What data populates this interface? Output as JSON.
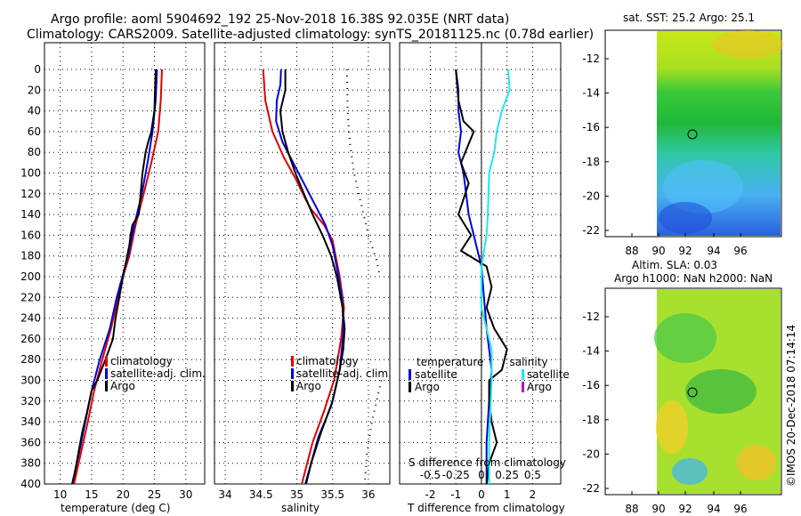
{
  "header": {
    "line1": "Argo profile: aoml 5904692_192 25-Nov-2018 16.38S 92.035E (NRT data)",
    "line2": "Climatology: CARS2009. Satellite-adjusted climatology: synTS_20181125.nc (0.78d earlier)"
  },
  "colors": {
    "climatology": "#e00000",
    "satellite": "#0000e0",
    "argo": "#000000",
    "sat_salinity": "#20e8e8",
    "argo_salinity": "#c000c0"
  },
  "chart_data": [
    {
      "type": "line",
      "id": "temperature",
      "xlabel": "temperature (deg C)",
      "xlim": [
        7.5,
        33
      ],
      "ylim": [
        0,
        400
      ],
      "x_ticks": [
        10,
        15,
        20,
        25,
        30
      ],
      "y_ticks": [
        0,
        20,
        40,
        60,
        80,
        100,
        120,
        140,
        160,
        180,
        200,
        220,
        240,
        260,
        280,
        300,
        320,
        340,
        360,
        380,
        400
      ],
      "legend": [
        "climatology",
        "satellite-adj. clim.",
        "Argo"
      ],
      "series": [
        {
          "name": "climatology",
          "points": [
            [
              26.2,
              0
            ],
            [
              26.0,
              30
            ],
            [
              25.6,
              60
            ],
            [
              24.5,
              90
            ],
            [
              23.3,
              120
            ],
            [
              22.0,
              150
            ],
            [
              21.0,
              180
            ],
            [
              20.0,
              200
            ],
            [
              19.2,
              220
            ],
            [
              18.1,
              250
            ],
            [
              16.7,
              280
            ],
            [
              15.4,
              310
            ],
            [
              14.4,
              340
            ],
            [
              13.3,
              370
            ],
            [
              12.2,
              400
            ]
          ]
        },
        {
          "name": "satellite-adj. clim.",
          "points": [
            [
              25.4,
              0
            ],
            [
              25.2,
              30
            ],
            [
              24.7,
              60
            ],
            [
              23.9,
              90
            ],
            [
              23.0,
              120
            ],
            [
              21.8,
              150
            ],
            [
              20.8,
              180
            ],
            [
              19.9,
              200
            ],
            [
              19.0,
              220
            ],
            [
              17.9,
              250
            ],
            [
              16.3,
              280
            ],
            [
              15.0,
              310
            ],
            [
              14.0,
              340
            ],
            [
              13.0,
              370
            ],
            [
              11.9,
              400
            ]
          ]
        },
        {
          "name": "Argo",
          "points": [
            [
              25.2,
              0
            ],
            [
              25.1,
              20
            ],
            [
              25.0,
              40
            ],
            [
              24.5,
              60
            ],
            [
              24.0,
              70
            ],
            [
              23.6,
              80
            ],
            [
              23.1,
              100
            ],
            [
              22.8,
              120
            ],
            [
              22.5,
              140
            ],
            [
              21.5,
              150
            ],
            [
              21.2,
              160
            ],
            [
              21.0,
              170
            ],
            [
              20.5,
              185
            ],
            [
              20.0,
              200
            ],
            [
              19.4,
              220
            ],
            [
              18.8,
              240
            ],
            [
              18.4,
              260
            ],
            [
              17.2,
              280
            ],
            [
              15.9,
              300
            ],
            [
              15.0,
              310
            ],
            [
              14.3,
              330
            ],
            [
              13.5,
              350
            ],
            [
              12.9,
              370
            ],
            [
              12.3,
              390
            ],
            [
              11.9,
              400
            ]
          ]
        }
      ]
    },
    {
      "type": "line",
      "id": "salinity",
      "xlabel": "salinity",
      "xlim": [
        33.85,
        36.3
      ],
      "ylim": [
        0,
        400
      ],
      "x_ticks": [
        34,
        34.5,
        35,
        35.5,
        36
      ],
      "legend": [
        "climatology",
        "satellite-adj. clim.",
        "Argo"
      ],
      "series": [
        {
          "name": "climatology",
          "points": [
            [
              34.53,
              0
            ],
            [
              34.56,
              30
            ],
            [
              34.66,
              60
            ],
            [
              34.82,
              85
            ],
            [
              34.98,
              105
            ],
            [
              35.12,
              125
            ],
            [
              35.2,
              135
            ],
            [
              35.38,
              150
            ],
            [
              35.5,
              165
            ],
            [
              35.6,
              200
            ],
            [
              35.66,
              230
            ],
            [
              35.62,
              260
            ],
            [
              35.52,
              300
            ],
            [
              35.38,
              330
            ],
            [
              35.22,
              360
            ],
            [
              35.07,
              400
            ]
          ]
        },
        {
          "name": "satellite-adj. clim.",
          "points": [
            [
              34.78,
              0
            ],
            [
              34.77,
              15
            ],
            [
              34.72,
              30
            ],
            [
              34.71,
              50
            ],
            [
              34.8,
              70
            ],
            [
              34.95,
              90
            ],
            [
              35.1,
              110
            ],
            [
              35.25,
              130
            ],
            [
              35.4,
              150
            ],
            [
              35.5,
              170
            ],
            [
              35.57,
              195
            ],
            [
              35.64,
              225
            ],
            [
              35.65,
              255
            ],
            [
              35.6,
              290
            ],
            [
              35.48,
              325
            ],
            [
              35.3,
              355
            ],
            [
              35.12,
              400
            ]
          ]
        },
        {
          "name": "Argo",
          "points": [
            [
              34.84,
              0
            ],
            [
              34.84,
              20
            ],
            [
              34.77,
              40
            ],
            [
              34.8,
              60
            ],
            [
              34.88,
              80
            ],
            [
              34.98,
              100
            ],
            [
              35.1,
              120
            ],
            [
              35.22,
              140
            ],
            [
              35.36,
              160
            ],
            [
              35.48,
              180
            ],
            [
              35.56,
              200
            ],
            [
              35.64,
              230
            ],
            [
              35.67,
              250
            ],
            [
              35.65,
              270
            ],
            [
              35.6,
              290
            ],
            [
              35.5,
              320
            ],
            [
              35.34,
              350
            ],
            [
              35.2,
              380
            ],
            [
              35.13,
              400
            ]
          ]
        },
        {
          "name": "dotted",
          "points": [
            [
              35.7,
              0
            ],
            [
              35.71,
              40
            ],
            [
              35.74,
              70
            ],
            [
              35.8,
              100
            ],
            [
              35.9,
              130
            ],
            [
              36.0,
              160
            ],
            [
              36.12,
              185
            ],
            [
              36.16,
              200
            ]
          ]
        },
        {
          "name": "dotted-lower",
          "points": [
            [
              36.18,
              300
            ],
            [
              36.05,
              340
            ],
            [
              35.98,
              370
            ],
            [
              35.95,
              400
            ]
          ]
        }
      ]
    },
    {
      "type": "line",
      "id": "difference",
      "xlabel": "T difference from climatology",
      "xlabel_top": "S difference from climatology",
      "xlim": [
        -3.2,
        3.1
      ],
      "ylim": [
        0,
        400
      ],
      "x_ticks": [
        -2,
        -1,
        0,
        1,
        2
      ],
      "x_ticks_s": [
        "-0.5",
        "-0.25",
        "0",
        "0.25",
        "0.5"
      ],
      "legend_temperature": {
        "title": "temperature",
        "items": [
          "satellite",
          "Argo"
        ]
      },
      "legend_salinity": {
        "title": "salinity",
        "items": [
          "satellite",
          "Argo"
        ]
      },
      "series": [
        {
          "name": "T satellite",
          "points": [
            [
              -1.0,
              0
            ],
            [
              -0.9,
              20
            ],
            [
              -0.9,
              40
            ],
            [
              -0.8,
              60
            ],
            [
              -0.9,
              80
            ],
            [
              -0.7,
              100
            ],
            [
              -0.6,
              120
            ],
            [
              -0.5,
              140
            ],
            [
              -0.3,
              160
            ],
            [
              0.0,
              190
            ],
            [
              0.1,
              220
            ],
            [
              0.2,
              250
            ],
            [
              0.3,
              270
            ],
            [
              0.4,
              290
            ],
            [
              0.3,
              320
            ],
            [
              0.2,
              360
            ],
            [
              0.2,
              400
            ]
          ]
        },
        {
          "name": "T Argo",
          "points": [
            [
              -1.0,
              0
            ],
            [
              -0.9,
              30
            ],
            [
              -0.7,
              50
            ],
            [
              -0.3,
              60
            ],
            [
              -0.8,
              90
            ],
            [
              -0.5,
              110
            ],
            [
              -0.9,
              140
            ],
            [
              -0.4,
              160
            ],
            [
              -0.8,
              175
            ],
            [
              0.2,
              190
            ],
            [
              0.4,
              210
            ],
            [
              0.2,
              230
            ],
            [
              0.5,
              250
            ],
            [
              1.0,
              270
            ],
            [
              0.8,
              290
            ],
            [
              0.3,
              300
            ],
            [
              0.3,
              320
            ],
            [
              0.4,
              340
            ],
            [
              0.6,
              360
            ],
            [
              0.3,
              380
            ],
            [
              0.2,
              400
            ]
          ]
        },
        {
          "name": "S satellite",
          "points": [
            [
              1.05,
              0
            ],
            [
              1.1,
              20
            ],
            [
              0.8,
              40
            ],
            [
              0.6,
              60
            ],
            [
              0.5,
              80
            ],
            [
              0.3,
              100
            ],
            [
              0.25,
              140
            ],
            [
              0.2,
              160
            ],
            [
              0.0,
              190
            ],
            [
              0.0,
              230
            ],
            [
              0.4,
              270
            ],
            [
              0.4,
              300
            ],
            [
              0.35,
              330
            ],
            [
              0.3,
              360
            ],
            [
              0.3,
              400
            ]
          ]
        }
      ]
    }
  ],
  "maps": {
    "sst": {
      "title": "sat. SST: 25.2 Argo: 25.1",
      "x_ticks": [
        "88",
        "90",
        "92",
        "94",
        "96"
      ],
      "y_ticks": [
        "-12",
        "-14",
        "-16",
        "-18",
        "-20",
        "-22"
      ],
      "argo_lon": 92.035,
      "argo_lat": -16.38
    },
    "sla": {
      "title": "Altim. SLA: 0.03",
      "subtitle": "Argo h1000: NaN h2000: NaN",
      "x_ticks": [
        "88",
        "90",
        "92",
        "94",
        "96"
      ],
      "y_ticks": [
        "-12",
        "-14",
        "-16",
        "-18",
        "-20",
        "-22"
      ],
      "argo_lon": 92.035,
      "argo_lat": -16.38
    }
  },
  "credit": "©IMOS 20-Dec-2018 07:14:14"
}
